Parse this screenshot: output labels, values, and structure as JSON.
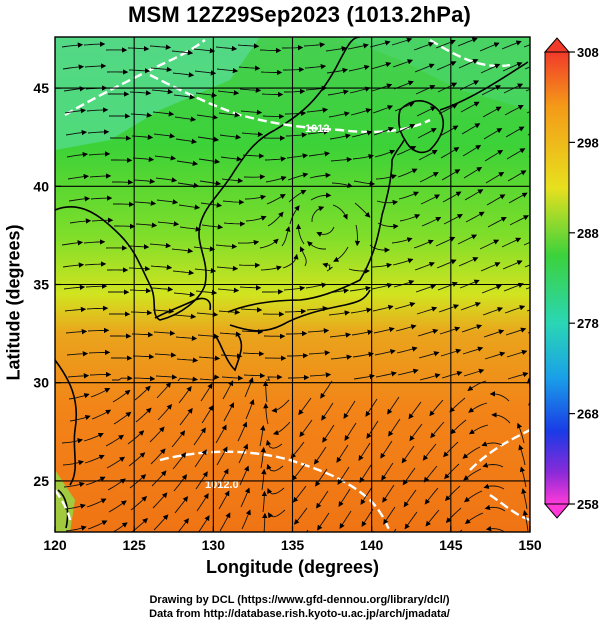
{
  "title": "MSM 12Z29Sep2023 (1013.2hPa)",
  "x_axis": {
    "label": "Longitude (degrees)",
    "ticks": [
      "120",
      "125",
      "130",
      "135",
      "140",
      "145",
      "150"
    ]
  },
  "y_axis": {
    "label": "Latitude  (degrees)",
    "ticks": [
      "25",
      "30",
      "35",
      "40",
      "45"
    ]
  },
  "colorbar": {
    "labels": [
      "308",
      "298",
      "288",
      "278",
      "268",
      "258"
    ]
  },
  "contour_labels": [
    "1012",
    "1012.0"
  ],
  "credits": {
    "line1": "Drawing by DCL (https://www.gfd-dennou.org/library/dcl/)",
    "line2": "Data from http://database.rish.kyoto-u.ac.jp/arch/jmadata/"
  },
  "map": {
    "lon_range": [
      120,
      150
    ],
    "lat_range": [
      22.4,
      47.6
    ],
    "grid_lons": [
      120,
      125,
      130,
      135,
      140,
      145,
      150
    ],
    "grid_lats": [
      25,
      30,
      35,
      40,
      45
    ],
    "colorbar_range": [
      258,
      308
    ]
  },
  "colors": {
    "ocean_warm": "#f07a14",
    "mid_yellow": "#d8e61e",
    "land_green": "#34c82a",
    "cool_cyan": "#5ee0b0",
    "isobar": "#ffffff",
    "grid": "#000000",
    "colorbar_top": "#f23a2a",
    "colorbar_bottom": "#ff3ad8"
  }
}
